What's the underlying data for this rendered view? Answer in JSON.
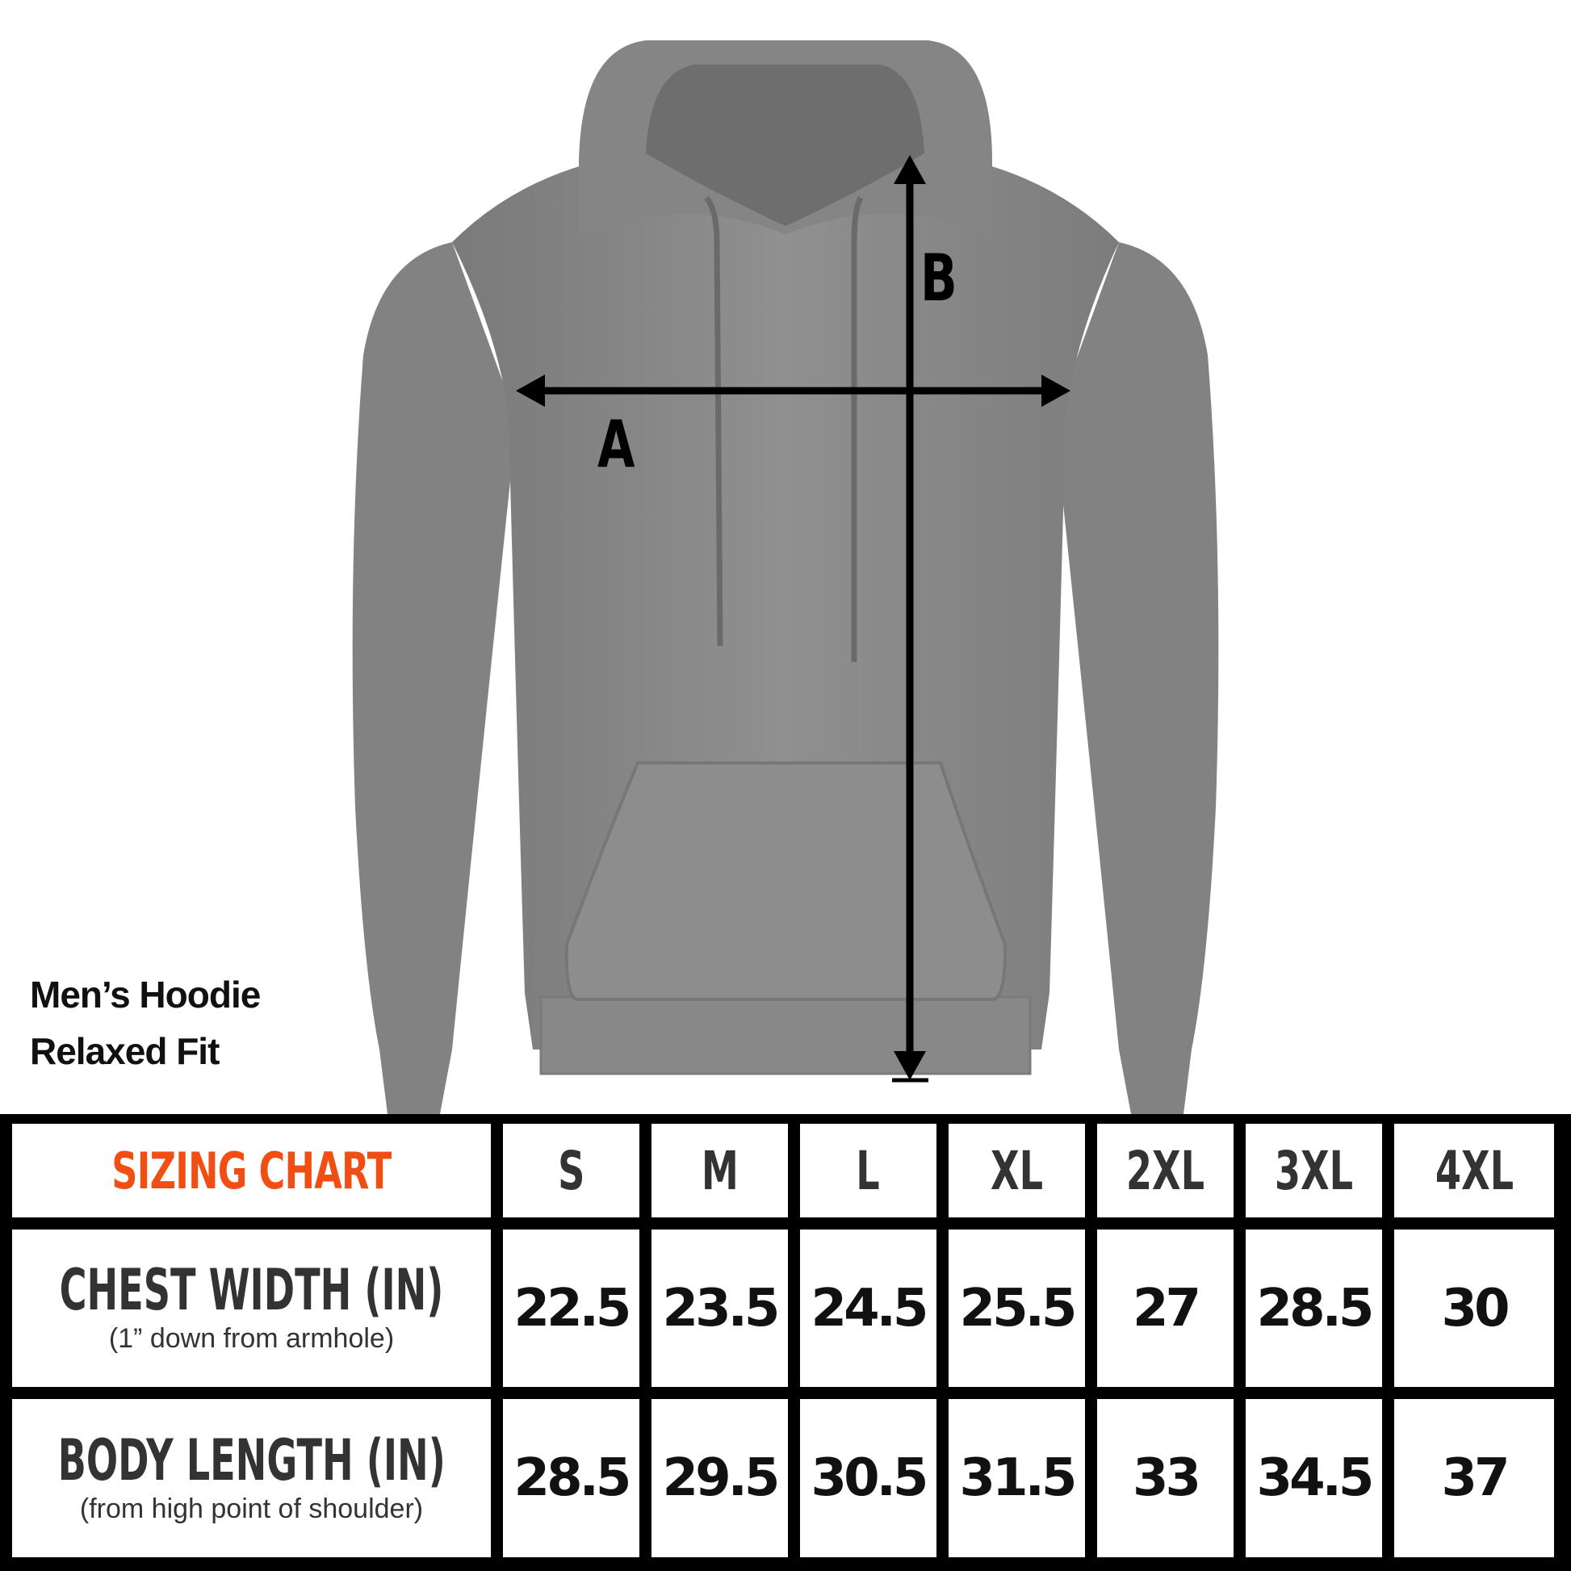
{
  "product": {
    "line1": "Men’s Hoodie",
    "line2": "Relaxed Fit"
  },
  "markers": {
    "a": "A",
    "b": "B"
  },
  "colors": {
    "accent": "#f04e12",
    "hoodie": "#8a8a8a",
    "border": "#000000"
  },
  "table": {
    "title": "SIZING CHART",
    "sizes": [
      "S",
      "M",
      "L",
      "XL",
      "2XL",
      "3XL",
      "4XL"
    ],
    "rows": [
      {
        "label": "CHEST WIDTH (IN)",
        "sub": "(1” down from armhole)",
        "values": [
          "22.5",
          "23.5",
          "24.5",
          "25.5",
          "27",
          "28.5",
          "30"
        ]
      },
      {
        "label": "BODY LENGTH (IN)",
        "sub": "(from high point of shoulder)",
        "values": [
          "28.5",
          "29.5",
          "30.5",
          "31.5",
          "33",
          "34.5",
          "37"
        ]
      }
    ]
  }
}
